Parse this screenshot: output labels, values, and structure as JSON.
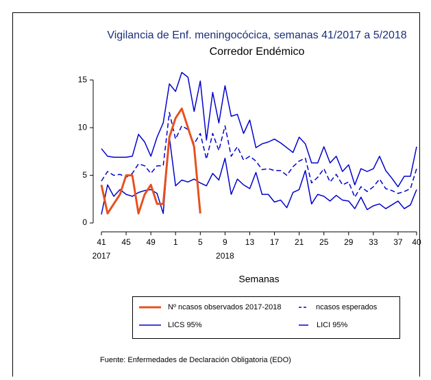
{
  "chart_data": {
    "type": "line",
    "title": "Vigilancia de Enf. meningocócica, semanas 41/2017 a 5/2018",
    "subtitle": "Corredor Endémico",
    "x_label": "Semanas",
    "source": "Fuente: Enfermedades de Declaración Obligatoria (EDO)",
    "categories": [
      "41",
      null,
      null,
      null,
      "45",
      null,
      null,
      null,
      "49",
      null,
      null,
      null,
      "1",
      null,
      null,
      null,
      "5",
      null,
      null,
      null,
      "9",
      null,
      null,
      null,
      "13",
      null,
      null,
      null,
      "17",
      null,
      null,
      null,
      "21",
      null,
      null,
      null,
      "25",
      null,
      null,
      null,
      "29",
      null,
      null,
      null,
      "33",
      null,
      null,
      null,
      "37",
      null,
      null,
      "40"
    ],
    "category_years": [
      "2017",
      null,
      null,
      null,
      null,
      null,
      null,
      null,
      null,
      null,
      null,
      null,
      null,
      null,
      null,
      null,
      null,
      null,
      null,
      null,
      "2018",
      null,
      null,
      null,
      null,
      null,
      null,
      null,
      null,
      null,
      null,
      null,
      null,
      null,
      null,
      null,
      null,
      null,
      null,
      null,
      null,
      null,
      null,
      null,
      null,
      null,
      null,
      null,
      null,
      null,
      null,
      null
    ],
    "ylim": [
      -0.5,
      16.2
    ],
    "yticks": [
      0,
      5,
      10,
      15
    ],
    "series": [
      {
        "name": "Nº ncasos observados 2017-2018",
        "color": "#e8501c",
        "style": "solid",
        "width": 3,
        "values": [
          4,
          1,
          2,
          3,
          5,
          5,
          1,
          3,
          4,
          2,
          2,
          9,
          11,
          12,
          10,
          8,
          1,
          null,
          null,
          null,
          null,
          null,
          null,
          null,
          null,
          null,
          null,
          null,
          null,
          null,
          null,
          null,
          null,
          null,
          null,
          null,
          null,
          null,
          null,
          null,
          null,
          null,
          null,
          null,
          null,
          null,
          null,
          null,
          null,
          null,
          null,
          null
        ]
      },
      {
        "name": "ncasos esperados",
        "color": "#0000cc",
        "style": "dashed",
        "width": 1.5,
        "values": [
          4.4,
          5.4,
          5.0,
          5.1,
          4.8,
          5.2,
          6.2,
          6.0,
          5.2,
          6.0,
          6.0,
          11.6,
          8.8,
          10.2,
          9.8,
          8.3,
          9.4,
          6.7,
          9.4,
          7.6,
          10.2,
          7.0,
          8.0,
          6.6,
          7.0,
          6.5,
          5.6,
          5.7,
          5.5,
          5.5,
          5.0,
          5.9,
          6.5,
          6.8,
          4.2,
          4.8,
          5.7,
          4.3,
          5.1,
          4.0,
          4.3,
          2.7,
          3.8,
          3.3,
          3.8,
          4.6,
          3.6,
          3.4,
          3.1,
          3.3,
          3.6,
          5.7
        ]
      },
      {
        "name": "LICS 95%",
        "color": "#0000cc",
        "style": "solid",
        "width": 1.5,
        "values": [
          7.8,
          7.0,
          6.9,
          6.9,
          6.9,
          7.0,
          9.3,
          8.5,
          7.0,
          9.0,
          10.5,
          14.6,
          13.8,
          15.8,
          15.3,
          11.7,
          14.9,
          8.7,
          13.7,
          10.5,
          14.4,
          11.2,
          11.4,
          9.4,
          10.8,
          7.9,
          8.3,
          8.5,
          8.8,
          8.4,
          7.9,
          7.4,
          9.0,
          8.3,
          6.3,
          6.3,
          8.0,
          6.3,
          7.0,
          5.4,
          6.1,
          4.0,
          5.7,
          5.4,
          5.7,
          7.0,
          5.5,
          4.7,
          3.8,
          4.9,
          4.9,
          8.0
        ]
      },
      {
        "name": "LICI 95%",
        "color": "#0000cc",
        "style": "solid",
        "width": 1.5,
        "values": [
          0.9,
          4.0,
          2.8,
          3.5,
          3.0,
          2.8,
          3.2,
          3.4,
          3.5,
          3.1,
          1.0,
          9.0,
          3.9,
          4.5,
          4.3,
          4.6,
          4.2,
          3.9,
          5.2,
          4.5,
          6.8,
          3.0,
          4.6,
          4.0,
          3.6,
          5.3,
          3.0,
          3.0,
          2.2,
          2.4,
          1.6,
          3.2,
          3.5,
          5.5,
          2.0,
          3.0,
          2.8,
          2.3,
          2.9,
          2.4,
          2.3,
          1.5,
          2.7,
          1.4,
          1.8,
          2.0,
          1.5,
          1.9,
          2.3,
          1.5,
          1.9,
          3.5
        ]
      }
    ]
  }
}
